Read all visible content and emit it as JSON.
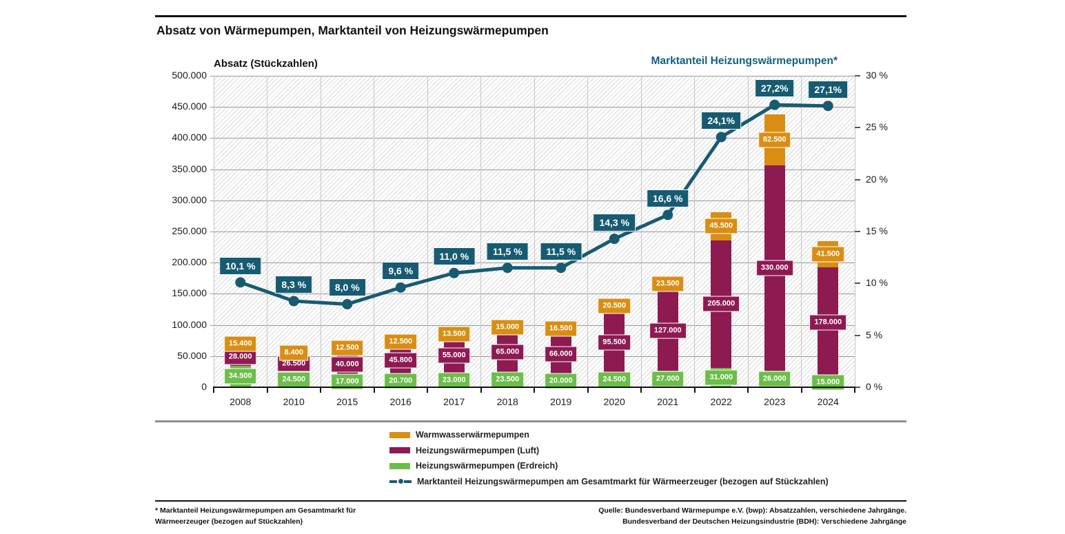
{
  "header": {
    "title": "Absatz von Wärmepumpen, Marktanteil von Heizungswärmepumpen"
  },
  "chart_data": {
    "type": "bar",
    "subtype": "stacked-bars-with-line",
    "title_left": "Absatz (Stückzahlen)",
    "title_right": "Marktanteil Heizungswärmepumpen*",
    "categories": [
      "2008",
      "2010",
      "2015",
      "2016",
      "2017",
      "2018",
      "2019",
      "2020",
      "2021",
      "2022",
      "2023",
      "2024"
    ],
    "series": [
      {
        "name": "Heizungswärmepumpen (Erdreich)",
        "color": "erdreich",
        "values": [
          34500,
          24500,
          17000,
          20700,
          23000,
          23500,
          20000,
          24500,
          27000,
          31000,
          26000,
          15000
        ],
        "value_labels": [
          "34.500",
          "24.500",
          "17.000",
          "20.700",
          "23.000",
          "23.500",
          "20.000",
          "24.500",
          "27.000",
          "31.000",
          "26.000",
          "15.000"
        ]
      },
      {
        "name": "Heizungswärmepumpen (Luft)",
        "color": "luft",
        "values": [
          28000,
          26500,
          40000,
          45800,
          55000,
          65000,
          66000,
          95500,
          127000,
          205000,
          330000,
          178000
        ],
        "value_labels": [
          "28.000",
          "26.500",
          "40.000",
          "45.800",
          "55.000",
          "65.000",
          "66.000",
          "95.500",
          "127.000",
          "205.000",
          "330.000",
          "178.000"
        ]
      },
      {
        "name": "Warmwasserwärmepumpen",
        "color": "warmwasser",
        "values": [
          15400,
          8400,
          12500,
          12500,
          13500,
          15000,
          16500,
          20500,
          23500,
          45500,
          82500,
          41500
        ],
        "value_labels": [
          "15.400",
          "8.400",
          "12.500",
          "12.500",
          "13.500",
          "15.000",
          "16.500",
          "20.500",
          "23.500",
          "45.500",
          "82.500",
          "41.500"
        ]
      }
    ],
    "line": {
      "name": "Marktanteil Heizungswärmepumpen am Gesamtmarkt für Wärmeerzeuger (bezogen auf Stückzahlen)",
      "color": "marktanteil",
      "values": [
        10.1,
        8.3,
        8.0,
        9.6,
        11.0,
        11.5,
        11.5,
        14.3,
        16.6,
        24.1,
        27.2,
        27.1
      ],
      "value_labels": [
        "10,1 %",
        "8,3 %",
        "8,0 %",
        "9,6 %",
        "11,0 %",
        "11,5 %",
        "11,5 %",
        "14,3 %",
        "16,6 %",
        "24,1%",
        "27,2%",
        "27,1%"
      ]
    },
    "axis_left": {
      "max": 500000,
      "min": 0,
      "tick_labels": [
        "500.000",
        "450.000",
        "400.000",
        "350.000",
        "300.000",
        "250.000",
        "200.000",
        "150.000",
        "100.000",
        "50.000",
        "0"
      ]
    },
    "axis_right": {
      "max": 30,
      "min": 0,
      "tick_labels": [
        "30 %",
        "25 %",
        "20 %",
        "15 %",
        "10 %",
        "5 %",
        "0 %"
      ]
    },
    "grid": "horizontal-and-vertical",
    "colors": {
      "warmwasser": "#D98E13",
      "luft": "#8E1A52",
      "erdreich": "#6CBD49",
      "marktanteil": "#175B72",
      "right_title_text": "#14607E"
    }
  },
  "legend": {
    "items": [
      {
        "label": "Warmwasserwärmepumpen",
        "swatch": "warmwasser",
        "type": "box"
      },
      {
        "label": "Heizungswärmepumpen (Luft)",
        "swatch": "luft",
        "type": "box"
      },
      {
        "label": "Heizungswärmepumpen (Erdreich)",
        "swatch": "erdreich",
        "type": "box"
      },
      {
        "label": "Marktanteil Heizungswärmepumpen am Gesamtmarkt für Wärmeerzeuger (bezogen auf Stückzahlen)",
        "swatch": "marktanteil",
        "type": "line"
      }
    ]
  },
  "footnote": {
    "line1": "* Marktanteil Heizungswärmepumpen am Gesamtmarkt für",
    "line2": "Wärmeerzeuger (bezogen auf Stückzahlen)"
  },
  "source": {
    "line1": "Quelle: Bundesverband Wärmepumpe e.V. (bwp): Absatzzahlen, verschiedene Jahrgänge.",
    "line2": "Bundesverband der Deutschen Heizungsindustrie (BDH): Verschiedene Jahrgänge"
  }
}
